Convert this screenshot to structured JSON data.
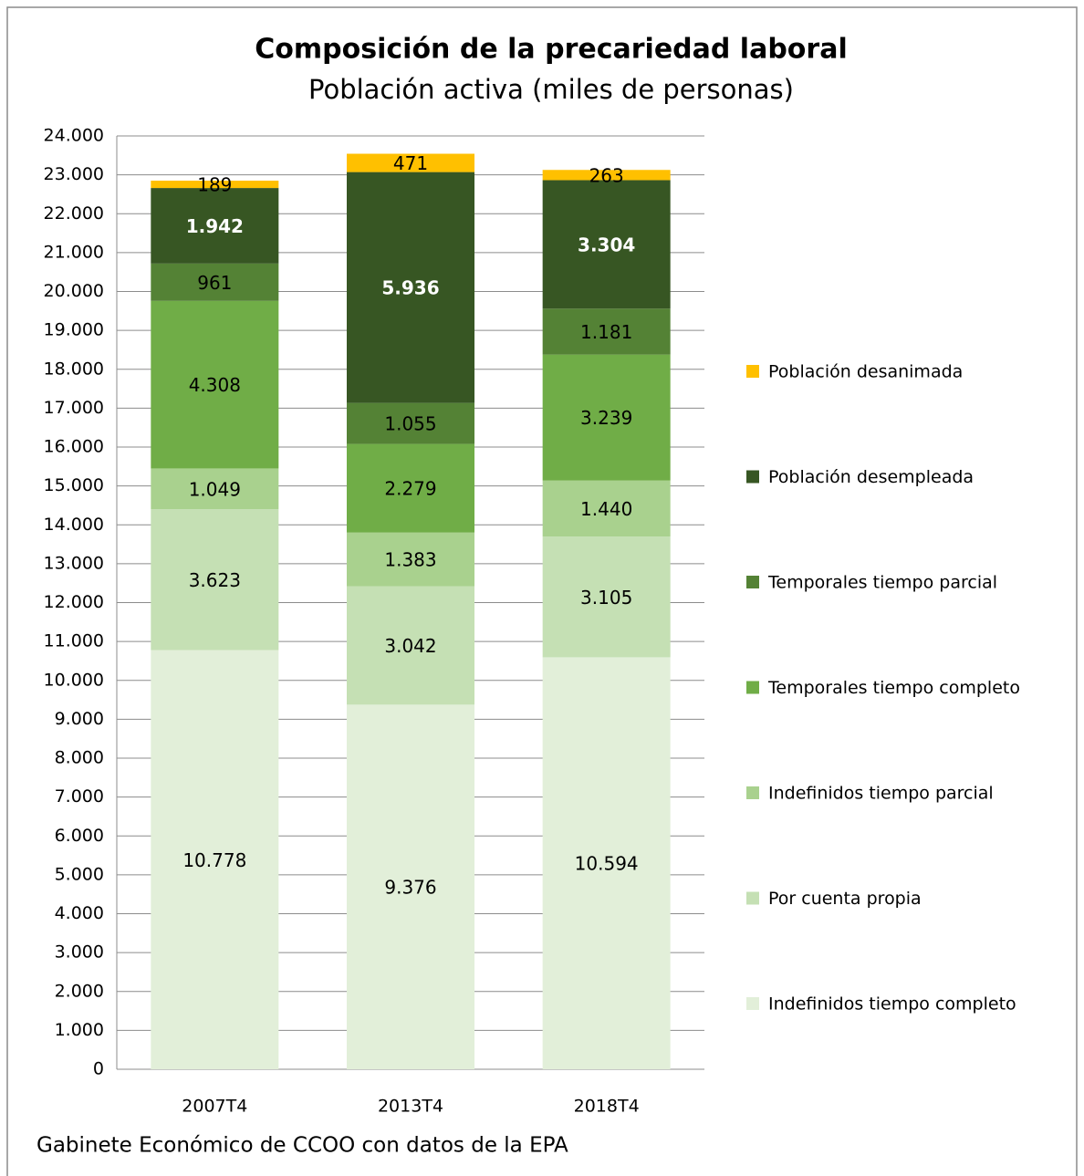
{
  "chart_data": {
    "type": "stacked_bar",
    "title": "Composición de la precariedad laboral",
    "subtitle": "Población activa (miles de personas)",
    "source": "Gabinete Económico de CCOO con datos de la EPA",
    "categories": [
      "2007T4",
      "2013T4",
      "2018T4"
    ],
    "series": [
      {
        "name": "Indefinidos tiempo completo",
        "color": "#e2efd9",
        "values": [
          10778,
          9376,
          10594
        ],
        "value_labels": [
          "10.778",
          "9.376",
          "10.594"
        ]
      },
      {
        "name": "Por cuenta propia",
        "color": "#c5e0b4",
        "values": [
          3623,
          3042,
          3105
        ],
        "value_labels": [
          "3.623",
          "3.042",
          "3.105"
        ]
      },
      {
        "name": "Indefinidos tiempo parcial",
        "color": "#a9d18e",
        "values": [
          1049,
          1383,
          1440
        ],
        "value_labels": [
          "1.049",
          "1.383",
          "1.440"
        ]
      },
      {
        "name": "Temporales tiempo completo",
        "color": "#70ad47",
        "values": [
          4308,
          2279,
          3239
        ],
        "value_labels": [
          "4.308",
          "2.279",
          "3.239"
        ]
      },
      {
        "name": "Temporales tiempo parcial",
        "color": "#548235",
        "values": [
          961,
          1055,
          1181
        ],
        "value_labels": [
          "961",
          "1.055",
          "1.181"
        ]
      },
      {
        "name": "Población desempleada",
        "color": "#375623",
        "values": [
          1942,
          5936,
          3304
        ],
        "value_labels": [
          "1.942",
          "5.936",
          "3.304"
        ],
        "label_color": "#ffffff",
        "label_bold": true
      },
      {
        "name": "Población desanimada",
        "color": "#ffc000",
        "values": [
          189,
          471,
          263
        ],
        "value_labels": [
          "189",
          "471",
          "263"
        ]
      }
    ],
    "ylim": [
      0,
      24000
    ],
    "yticks": [
      0,
      {
        "value": 1000,
        "label": "1.000"
      },
      {
        "value": 2000,
        "label": "2.000"
      },
      {
        "value": 3000,
        "label": "3.000"
      },
      {
        "value": 4000,
        "label": "4.000"
      },
      {
        "value": 5000,
        "label": "5.000"
      },
      {
        "value": 6000,
        "label": "6.000"
      },
      {
        "value": 7000,
        "label": "7.000"
      },
      {
        "value": 8000,
        "label": "8.000"
      },
      {
        "value": 9000,
        "label": "9.000"
      },
      {
        "value": 10000,
        "label": "10.000"
      },
      {
        "value": 11000,
        "label": "11.000"
      },
      {
        "value": 12000,
        "label": "12.000"
      },
      {
        "value": 13000,
        "label": "13.000"
      },
      {
        "value": 14000,
        "label": "14.000"
      },
      {
        "value": 15000,
        "label": "15.000"
      },
      {
        "value": 16000,
        "label": "16.000"
      },
      {
        "value": 17000,
        "label": "17.000"
      },
      {
        "value": 18000,
        "label": "18.000"
      },
      {
        "value": 19000,
        "label": "19.000"
      },
      {
        "value": 20000,
        "label": "20.000"
      },
      {
        "value": 21000,
        "label": "21.000"
      },
      {
        "value": 22000,
        "label": "22.000"
      },
      {
        "value": 23000,
        "label": "23.000"
      },
      {
        "value": 24000,
        "label": "24.000"
      }
    ],
    "grid": true,
    "legend": "right"
  }
}
